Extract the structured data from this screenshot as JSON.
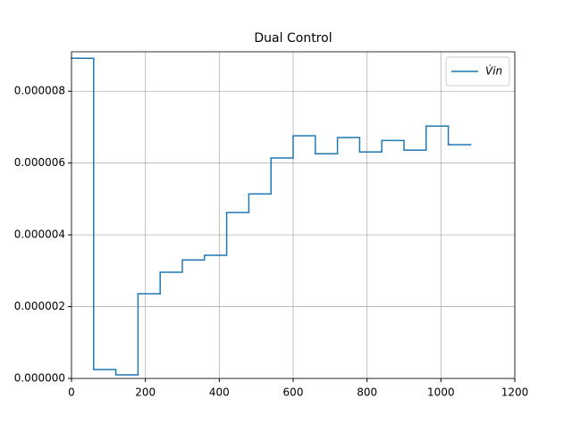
{
  "chart_data": {
    "type": "step",
    "title": "Dual Control",
    "x": [
      0,
      60,
      120,
      180,
      240,
      300,
      360,
      420,
      480,
      540,
      600,
      660,
      720,
      780,
      840,
      900,
      960,
      1020,
      1080
    ],
    "series": [
      {
        "name": "V̇in",
        "color": "#1f77b4",
        "values": [
          8.92e-06,
          2.5e-07,
          1e-07,
          2.36e-06,
          2.96e-06,
          3.3e-06,
          3.43e-06,
          4.62e-06,
          5.14e-06,
          6.14e-06,
          6.76e-06,
          6.26e-06,
          6.71e-06,
          6.31e-06,
          6.63e-06,
          6.36e-06,
          7.03e-06,
          6.51e-06,
          6.51e-06
        ]
      }
    ],
    "xlim": [
      0,
      1200
    ],
    "xticks": [
      0,
      200,
      400,
      600,
      800,
      1000,
      1200
    ],
    "ylim": [
      0,
      9.1e-06
    ],
    "yticks": [
      {
        "value": 0,
        "label": "0.000000"
      },
      {
        "value": 2e-06,
        "label": "0.000002"
      },
      {
        "value": 4e-06,
        "label": "0.000004"
      },
      {
        "value": 6e-06,
        "label": "0.000006"
      },
      {
        "value": 8e-06,
        "label": "0.000008"
      }
    ],
    "grid": true,
    "legend": "upper right"
  }
}
